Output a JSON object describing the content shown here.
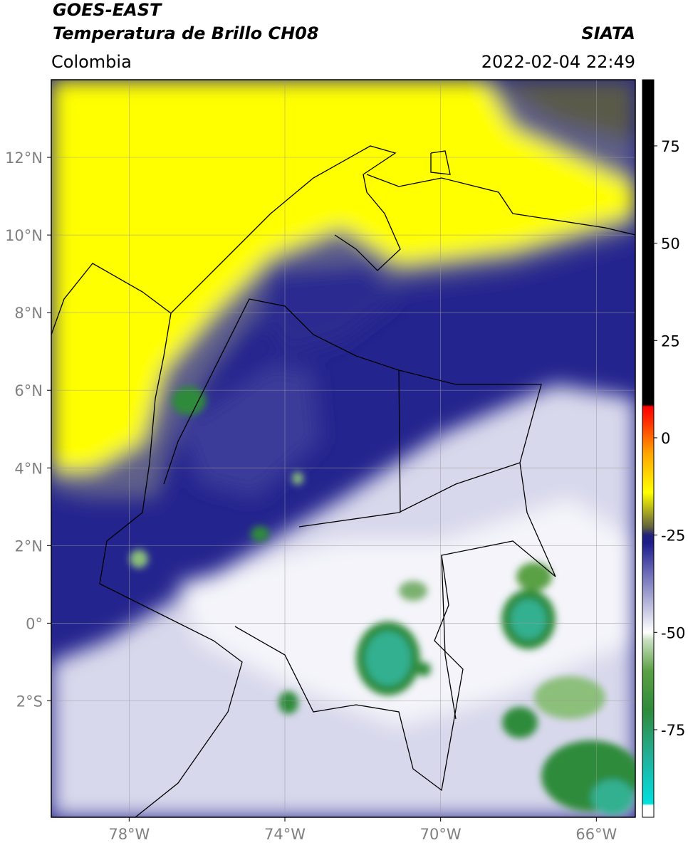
{
  "header": {
    "title": "GOES-EAST",
    "subtitle": "Temperatura de Brillo CH08",
    "region": "Colombia",
    "source": "SIATA",
    "timestamp": "2022-02-04 22:49"
  },
  "map": {
    "xlim": [
      -80,
      -65
    ],
    "ylim": [
      -5,
      14
    ],
    "xticks": [
      {
        "value": -78,
        "label": "78°W"
      },
      {
        "value": -74,
        "label": "74°W"
      },
      {
        "value": -70,
        "label": "70°W"
      },
      {
        "value": -66,
        "label": "66°W"
      }
    ],
    "yticks": [
      {
        "value": 12,
        "label": "12°N"
      },
      {
        "value": 10,
        "label": "10°N"
      },
      {
        "value": 8,
        "label": "8°N"
      },
      {
        "value": 6,
        "label": "6°N"
      },
      {
        "value": 4,
        "label": "4°N"
      },
      {
        "value": 2,
        "label": "2°N"
      },
      {
        "value": 0,
        "label": "0°"
      },
      {
        "value": -2,
        "label": "2°S"
      }
    ],
    "grid": true
  },
  "colorbar": {
    "lim": [
      -97.5,
      92
    ],
    "ticks": [
      75,
      50,
      25,
      0,
      -25,
      -50,
      -75
    ],
    "stops": [
      {
        "value": -97.5,
        "color": "#ffffff"
      },
      {
        "value": -94.5,
        "color": "#ffffff"
      },
      {
        "value": -94,
        "color": "#00e0e0"
      },
      {
        "value": -82,
        "color": "#22b09a"
      },
      {
        "value": -70,
        "color": "#2e8b3a"
      },
      {
        "value": -60,
        "color": "#5aa044"
      },
      {
        "value": -52,
        "color": "#c8e0c0"
      },
      {
        "value": -50,
        "color": "#ffffff"
      },
      {
        "value": -44,
        "color": "#c4c4e2"
      },
      {
        "value": -34,
        "color": "#6464b4"
      },
      {
        "value": -27,
        "color": "#1c1c8c"
      },
      {
        "value": -25,
        "color": "#22227a"
      },
      {
        "value": -23,
        "color": "#606040"
      },
      {
        "value": -19,
        "color": "#a8a820"
      },
      {
        "value": -14,
        "color": "#ffff00"
      },
      {
        "value": -4,
        "color": "#ffa500"
      },
      {
        "value": 4,
        "color": "#ff3000"
      },
      {
        "value": 8,
        "color": "#ff0000"
      },
      {
        "value": 8.5,
        "color": "#000000"
      },
      {
        "value": 92,
        "color": "#000000"
      }
    ]
  }
}
